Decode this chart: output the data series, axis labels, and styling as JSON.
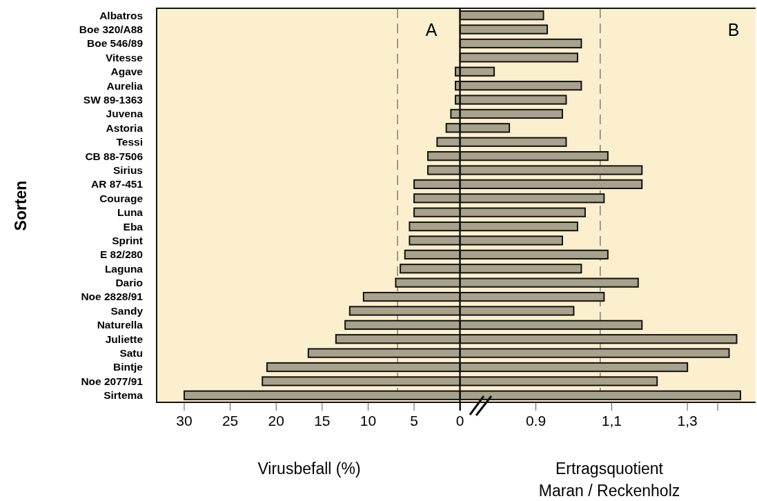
{
  "chart_data": [
    {
      "type": "bar",
      "orientation": "horizontal",
      "ylabel": "Sorten",
      "xlabel": "Virusbefall (%)",
      "annotations": [
        "A"
      ],
      "categories": [
        "Albatros",
        "Boe 320/A88",
        "Boe 546/89",
        "Vitesse",
        "Agave",
        "Aurelia",
        "SW 89-1363",
        "Juvena",
        "Astoria",
        "Tessi",
        "CB 88-7506",
        "Sirius",
        "AR 87-451",
        "Courage",
        "Luna",
        "Eba",
        "Sprint",
        "E 82/280",
        "Laguna",
        "Dario",
        "Noe 2828/91",
        "Sandy",
        "Naturella",
        "Juliette",
        "Satu",
        "Bintje",
        "Noe 2077/91",
        "Sirtema"
      ],
      "values": [
        0,
        0,
        0,
        0,
        0.5,
        0.5,
        0.5,
        1,
        1.5,
        2.5,
        3.5,
        3.5,
        5,
        5,
        5,
        5.5,
        5.5,
        6,
        6.5,
        7,
        10.5,
        12,
        12.5,
        13.5,
        16.5,
        21,
        21.5,
        30
      ],
      "color": "#a8a18c",
      "xlim": [
        33,
        0
      ],
      "xticks": [
        30,
        25,
        20,
        15,
        10,
        5,
        0
      ],
      "ref_lines": [
        {
          "axis": "x",
          "value": 6.8,
          "line_style": "dashed"
        }
      ]
    },
    {
      "type": "bar",
      "orientation": "horizontal",
      "xlabel": "Ertragsquotient\nMaran / Reckenholz",
      "annotations": [
        "B"
      ],
      "tick_labels": "x",
      "categories": [
        null,
        null,
        null,
        null,
        null,
        null,
        null,
        null,
        null,
        null,
        null,
        null,
        null,
        null,
        null,
        null,
        null,
        null,
        null,
        null,
        null,
        null,
        null,
        null,
        null,
        null,
        null,
        null
      ],
      "values": [
        0.92,
        0.93,
        1.02,
        1.01,
        0.79,
        1.02,
        0.98,
        0.97,
        0.83,
        0.98,
        1.09,
        1.18,
        1.18,
        1.08,
        1.03,
        1.01,
        0.97,
        1.09,
        1.02,
        1.17,
        1.08,
        1.0,
        1.18,
        1.43,
        1.41,
        1.3,
        1.22,
        1.44
      ],
      "color": "#a8a18c",
      "xlim": [
        0.7,
        1.48
      ],
      "xticks": [
        0.9,
        {
          "value": 1.1,
          "label": "1,1"
        },
        {
          "value": 1.3,
          "label": "1,3"
        },
        {
          "value": 1.38,
          "label": null
        }
      ],
      "ref_lines": [
        {
          "axis": "x",
          "value": 1.07,
          "line_style": "dashed"
        }
      ]
    }
  ]
}
